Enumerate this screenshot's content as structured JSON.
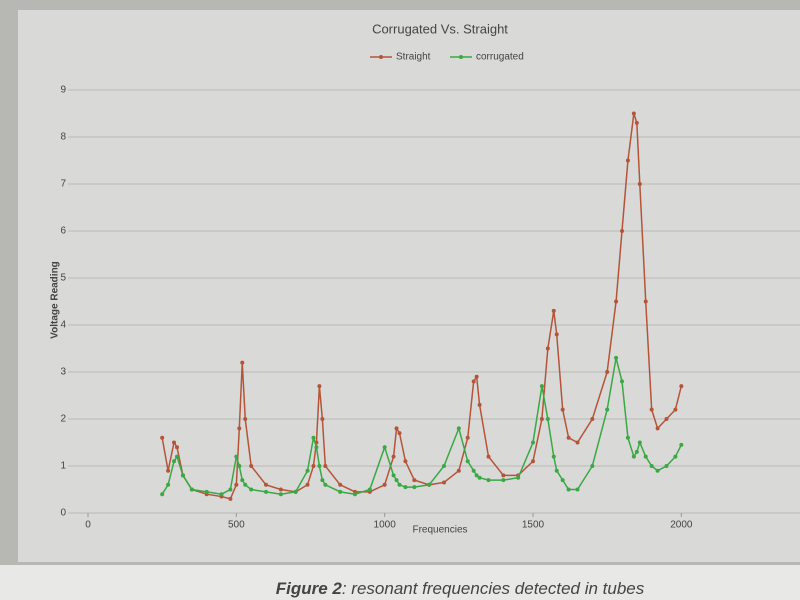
{
  "chart_data": {
    "type": "line",
    "title": "Corrugated Vs. Straight",
    "x_label": "Frequencies",
    "y_label": "Voltage Reading",
    "x": [
      250,
      270,
      290,
      300,
      320,
      350,
      400,
      450,
      480,
      500,
      510,
      520,
      530,
      550,
      600,
      650,
      700,
      740,
      760,
      770,
      780,
      790,
      800,
      850,
      900,
      950,
      1000,
      1030,
      1040,
      1050,
      1070,
      1100,
      1150,
      1200,
      1250,
      1280,
      1300,
      1310,
      1320,
      1350,
      1400,
      1450,
      1500,
      1530,
      1550,
      1570,
      1580,
      1600,
      1620,
      1650,
      1700,
      1750,
      1780,
      1800,
      1820,
      1840,
      1850,
      1860,
      1880,
      1900,
      1920,
      1950,
      1980,
      2000
    ],
    "series": [
      {
        "name": "Straight",
        "color": "#b4553a",
        "values": [
          1.6,
          0.9,
          1.5,
          1.4,
          0.8,
          0.5,
          0.4,
          0.35,
          0.3,
          0.6,
          1.8,
          3.2,
          2.0,
          1.0,
          0.6,
          0.5,
          0.45,
          0.6,
          1.0,
          1.5,
          2.7,
          2.0,
          1.0,
          0.6,
          0.45,
          0.45,
          0.6,
          1.2,
          1.8,
          1.7,
          1.1,
          0.7,
          0.6,
          0.65,
          0.9,
          1.6,
          2.8,
          2.9,
          2.3,
          1.2,
          0.8,
          0.8,
          1.1,
          2.0,
          3.5,
          4.3,
          3.8,
          2.2,
          1.6,
          1.5,
          2.0,
          3.0,
          4.5,
          6.0,
          7.5,
          8.5,
          8.3,
          7.0,
          4.5,
          2.2,
          1.8,
          2.0,
          2.2,
          2.7
        ]
      },
      {
        "name": "corrugated",
        "color": "#3aa845",
        "values": [
          0.4,
          0.6,
          1.1,
          1.2,
          0.8,
          0.5,
          0.45,
          0.4,
          0.5,
          1.2,
          1.0,
          0.7,
          0.6,
          0.5,
          0.45,
          0.4,
          0.45,
          0.9,
          1.6,
          1.4,
          1.0,
          0.7,
          0.6,
          0.45,
          0.4,
          0.5,
          1.4,
          0.8,
          0.7,
          0.6,
          0.55,
          0.55,
          0.6,
          1.0,
          1.8,
          1.1,
          0.9,
          0.8,
          0.75,
          0.7,
          0.7,
          0.75,
          1.5,
          2.7,
          2.0,
          1.2,
          0.9,
          0.7,
          0.5,
          0.5,
          1.0,
          2.2,
          3.3,
          2.8,
          1.6,
          1.2,
          1.3,
          1.5,
          1.2,
          1.0,
          0.9,
          1.0,
          1.2,
          1.45
        ]
      }
    ],
    "xlim": [
      0,
      2400
    ],
    "xticks": [
      0,
      500,
      1000,
      1500,
      2000
    ],
    "ylim": [
      0,
      9
    ],
    "yticks": [
      0,
      1,
      2,
      3,
      4,
      5,
      6,
      7,
      8,
      9
    ],
    "grid": true,
    "legend": "top"
  },
  "caption": {
    "label": "Figure 2",
    "text": ": resonant frequencies detected in tubes"
  }
}
